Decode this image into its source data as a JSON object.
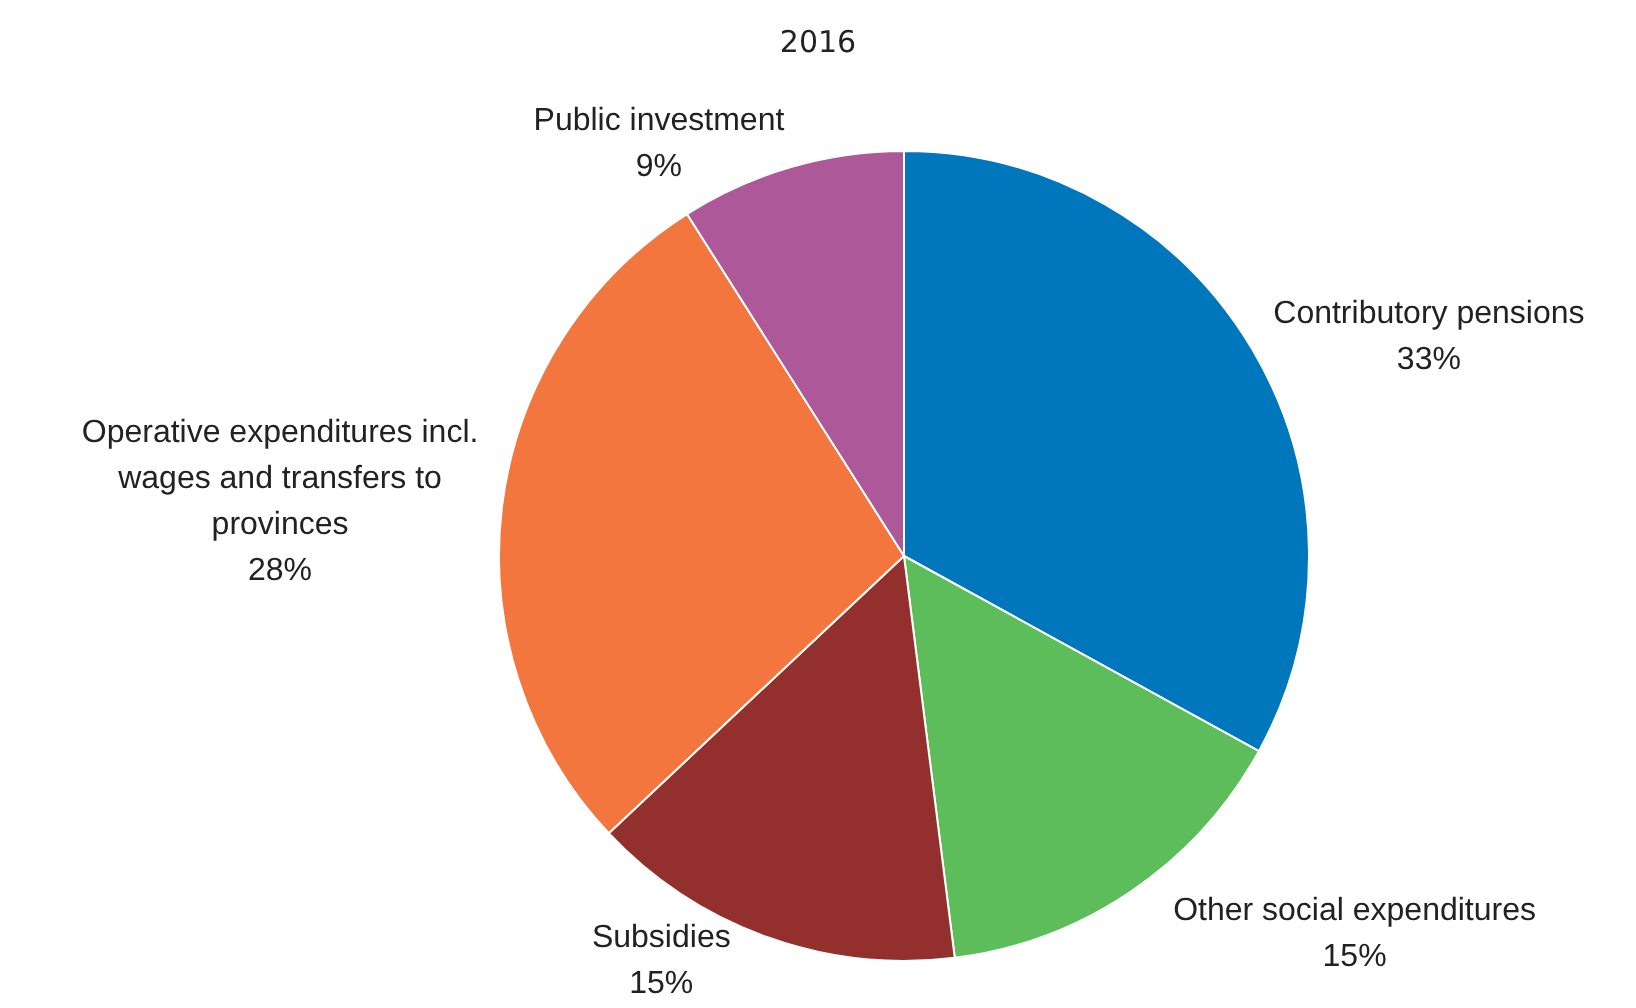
{
  "chart_data": {
    "type": "pie",
    "subtitle": "2016",
    "categories": [
      "Contributory pensions",
      "Other social expenditures",
      "Subsidies",
      "Operative expenditures incl. wages and transfers to provinces",
      "Public investment"
    ],
    "values": [
      33,
      15,
      15,
      28,
      9
    ],
    "value_labels": [
      "33%",
      "15%",
      "15%",
      "28%",
      "9%"
    ],
    "colors": [
      "#0077bd",
      "#5cbd5a",
      "#932f2d",
      "#f2763d",
      "#ad5999"
    ],
    "legend": false
  }
}
